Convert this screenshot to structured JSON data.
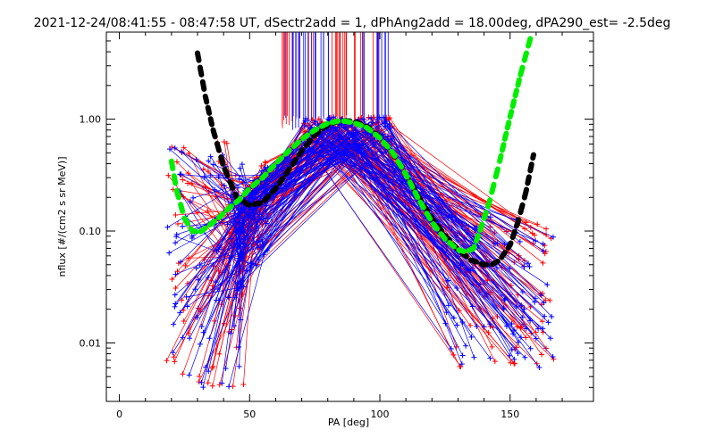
{
  "chart_data": {
    "type": "line",
    "title": "2021-12-24/08:41:55 - 08:47:58 UT, dSectr2add = 1, dPhAng2add = 18.00deg, dPA290_est=  -2.5deg",
    "xlabel": "PA [deg]",
    "ylabel": "nflux [#/(cm2 s sr MeV)]",
    "xlim": [
      -5,
      182
    ],
    "ylim": [
      0.003,
      6.0
    ],
    "yscale": "log",
    "x_ticks": [
      0,
      50,
      100,
      150
    ],
    "x_tick_labels": [
      "0",
      "50",
      "100",
      "150"
    ],
    "y_ticks": [
      0.01,
      0.1,
      1.0
    ],
    "y_tick_labels": [
      "0.01",
      "0.10",
      "1.00"
    ],
    "grid": false,
    "series": [
      {
        "color": "#000000",
        "style": "thick-dashed",
        "x": [
          30,
          33,
          36,
          40,
          45,
          50,
          55,
          60,
          65,
          70,
          75,
          80,
          85,
          90,
          95,
          100,
          105,
          110,
          115,
          120,
          125,
          130,
          135,
          140,
          143,
          146,
          150,
          153,
          156,
          159
        ],
        "y": [
          3.9,
          1.6,
          0.8,
          0.38,
          0.2,
          0.17,
          0.18,
          0.24,
          0.35,
          0.52,
          0.72,
          0.89,
          0.97,
          0.96,
          0.86,
          0.69,
          0.49,
          0.32,
          0.2,
          0.13,
          0.092,
          0.068,
          0.055,
          0.05,
          0.05,
          0.055,
          0.075,
          0.12,
          0.22,
          0.48
        ]
      },
      {
        "color": "#00ee00",
        "style": "thick-dashed",
        "x": [
          20,
          22,
          25,
          28,
          31,
          34,
          38,
          42,
          46,
          50,
          55,
          60,
          65,
          70,
          75,
          80,
          85,
          90,
          95,
          100,
          105,
          110,
          115,
          120,
          125,
          130,
          133,
          136,
          139,
          142,
          146,
          150,
          154,
          158
        ],
        "y": [
          0.42,
          0.23,
          0.13,
          0.1,
          0.098,
          0.11,
          0.13,
          0.16,
          0.19,
          0.24,
          0.3,
          0.4,
          0.52,
          0.66,
          0.8,
          0.92,
          0.97,
          0.93,
          0.84,
          0.68,
          0.5,
          0.32,
          0.19,
          0.12,
          0.085,
          0.068,
          0.065,
          0.07,
          0.11,
          0.18,
          0.42,
          1.05,
          2.5,
          5.5
        ]
      }
    ]
  }
}
